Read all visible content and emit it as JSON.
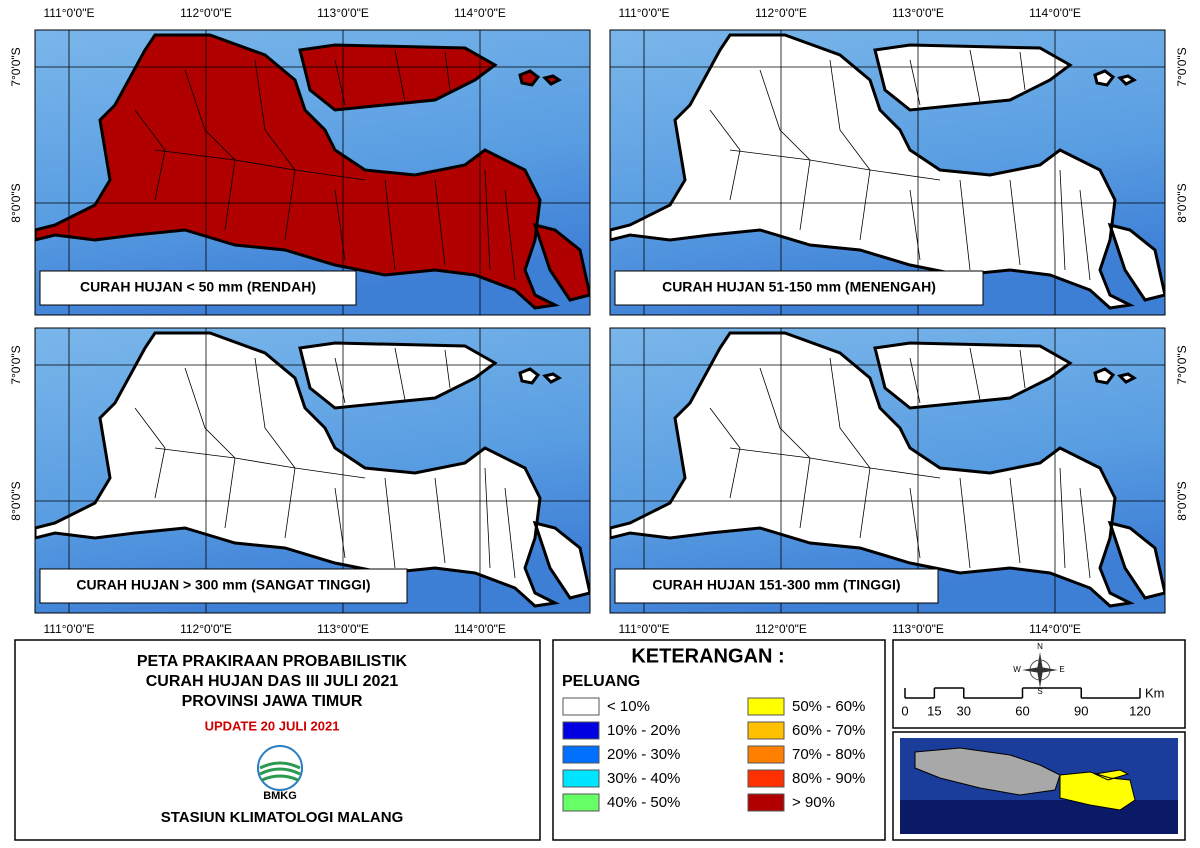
{
  "panels": [
    {
      "label": "CURAH HUJAN < 50 mm (RENDAH)",
      "fill": "#b00000"
    },
    {
      "label": "CURAH HUJAN 51-150 mm (MENENGAH)",
      "fill": "#ffffff"
    },
    {
      "label": "CURAH HUJAN > 300 mm (SANGAT TINGGI)",
      "fill": "#ffffff"
    },
    {
      "label": "CURAH HUJAN 151-300 mm (TINGGI)",
      "fill": "#ffffff"
    }
  ],
  "longitude_labels": [
    "111°0'0\"E",
    "112°0'0\"E",
    "113°0'0\"E",
    "114°0'0\"E"
  ],
  "latitude_labels": [
    "7°0'0\"S",
    "8°0'0\"S"
  ],
  "title": {
    "lines": [
      "PETA PRAKIRAAN PROBABILISTIK",
      "CURAH HUJAN DAS III JULI 2021",
      "PROVINSI JAWA TIMUR"
    ],
    "update": "UPDATE 20 JULI 2021",
    "logo": "BMKG",
    "station": "STASIUN KLIMATOLOGI MALANG"
  },
  "legend": {
    "title": "KETERANGAN :",
    "subtitle": "PELUANG",
    "items": [
      {
        "label": "< 10%",
        "color": "#ffffff"
      },
      {
        "label": "10% - 20%",
        "color": "#0000e0"
      },
      {
        "label": "20% - 30%",
        "color": "#0070ff"
      },
      {
        "label": "30% - 40%",
        "color": "#00e5ff"
      },
      {
        "label": "40% - 50%",
        "color": "#66ff66"
      },
      {
        "label": "50% - 60%",
        "color": "#ffff00"
      },
      {
        "label": "60% - 70%",
        "color": "#ffc000"
      },
      {
        "label": "70% - 80%",
        "color": "#ff8000"
      },
      {
        "label": "80% - 90%",
        "color": "#ff3000"
      },
      {
        "label": "> 90%",
        "color": "#b00000"
      }
    ]
  },
  "compass": {
    "n": "N",
    "e": "E",
    "s": "S",
    "w": "W"
  },
  "scale": {
    "ticks": [
      0,
      15,
      30,
      60,
      90,
      120
    ],
    "unit": "Km"
  }
}
